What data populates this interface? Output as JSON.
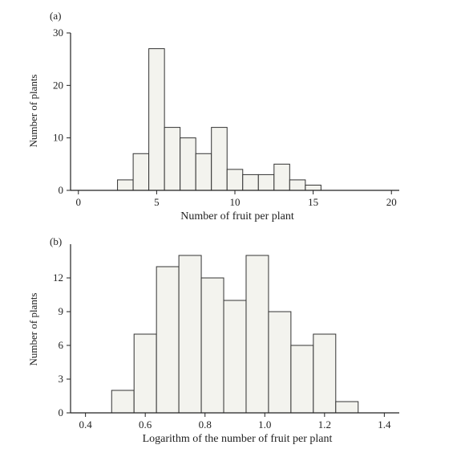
{
  "chart_data": [
    {
      "type": "bar",
      "panel_label": "(a)",
      "xlabel": "Number of fruit per plant",
      "ylabel": "Number of plants",
      "xlim": [
        -0.5,
        20.5
      ],
      "ylim": [
        0,
        30
      ],
      "xticks": [
        0,
        5,
        10,
        15,
        20
      ],
      "yticks": [
        0,
        10,
        20,
        30
      ],
      "bin_width": 1,
      "bins": [
        {
          "x": 1,
          "value": 0
        },
        {
          "x": 2,
          "value": 0
        },
        {
          "x": 3,
          "value": 2
        },
        {
          "x": 4,
          "value": 7
        },
        {
          "x": 5,
          "value": 27
        },
        {
          "x": 6,
          "value": 12
        },
        {
          "x": 7,
          "value": 10
        },
        {
          "x": 8,
          "value": 7
        },
        {
          "x": 9,
          "value": 12
        },
        {
          "x": 10,
          "value": 4
        },
        {
          "x": 11,
          "value": 3
        },
        {
          "x": 12,
          "value": 3
        },
        {
          "x": 13,
          "value": 5
        },
        {
          "x": 14,
          "value": 2
        },
        {
          "x": 15,
          "value": 1
        },
        {
          "x": 16,
          "value": 0
        },
        {
          "x": 17,
          "value": 0
        }
      ]
    },
    {
      "type": "bar",
      "panel_label": "(b)",
      "xlabel": "Logarithm of the number of fruit per plant",
      "ylabel": "Number of plants",
      "xlim": [
        0.35,
        1.45
      ],
      "ylim": [
        0,
        15
      ],
      "xticks": [
        "0.4",
        "0.6",
        "0.8",
        "1.0",
        "1.2",
        "1.4"
      ],
      "yticks": [
        0,
        3,
        6,
        9,
        12
      ],
      "bin_width": 0.075,
      "bins": [
        {
          "x": 0.525,
          "value": 2
        },
        {
          "x": 0.6,
          "value": 7
        },
        {
          "x": 0.675,
          "value": 13
        },
        {
          "x": 0.75,
          "value": 14
        },
        {
          "x": 0.825,
          "value": 12
        },
        {
          "x": 0.9,
          "value": 10
        },
        {
          "x": 0.975,
          "value": 14
        },
        {
          "x": 1.05,
          "value": 9
        },
        {
          "x": 1.125,
          "value": 6
        },
        {
          "x": 1.2,
          "value": 7
        },
        {
          "x": 1.275,
          "value": 1
        }
      ]
    }
  ]
}
